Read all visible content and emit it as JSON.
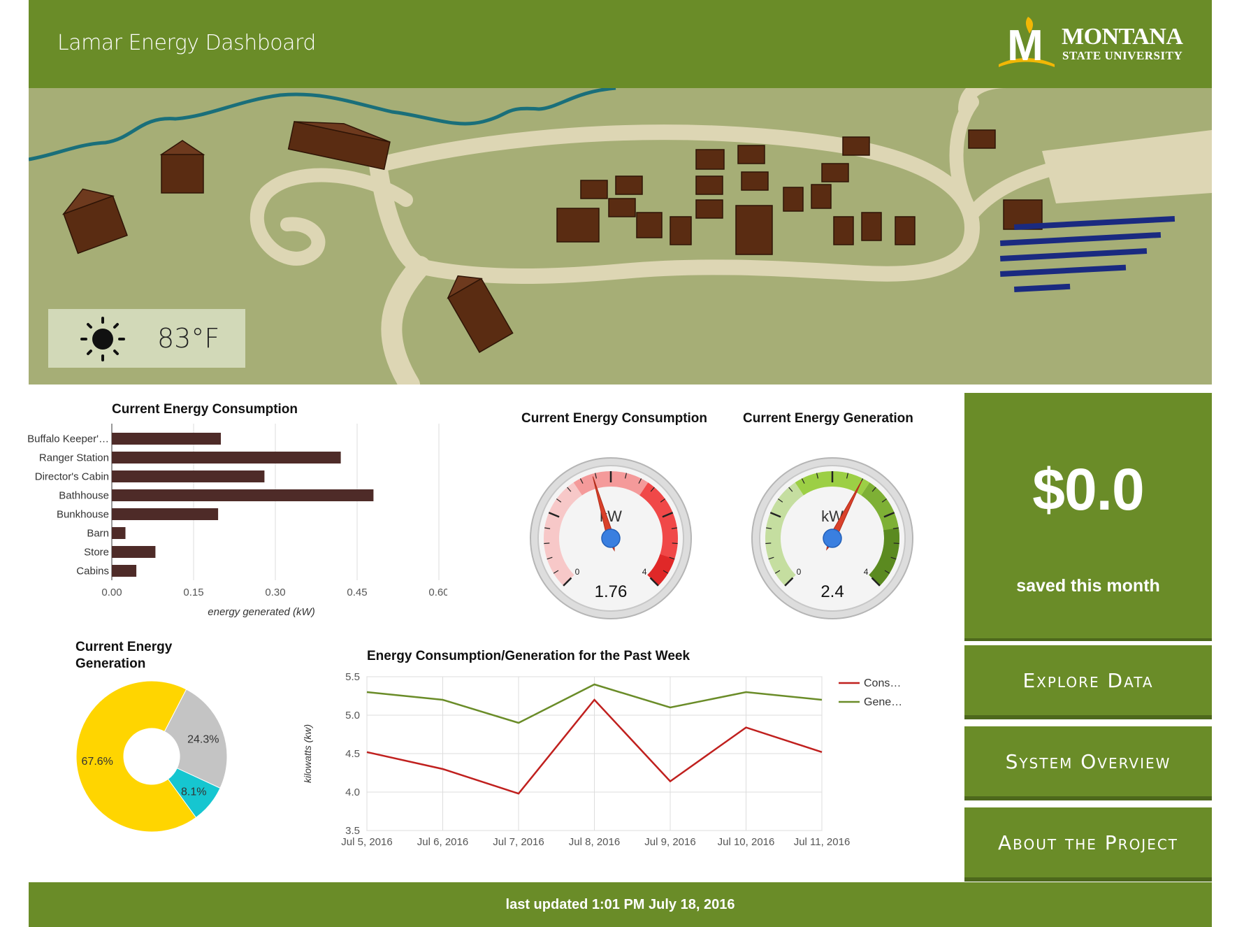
{
  "header": {
    "title": "Lamar Energy Dashboard"
  },
  "logo": {
    "name": "MONTANA",
    "sub": "STATE UNIVERSITY",
    "letter": "M"
  },
  "weather": {
    "icon": "sun-icon",
    "temperature": "83°F"
  },
  "bar_chart_title": "Current Energy Consumption",
  "gauge_consumption_title": "Current Energy Consumption",
  "gauge_generation_title": "Current Energy Generation",
  "donut_title_line1": "Current Energy",
  "donut_title_line2": "Generation",
  "line_chart_title": "Energy Consumption/Generation for the Past Week",
  "savings": {
    "value": "$0.0",
    "label": "saved this month"
  },
  "nav": {
    "explore": "Explore Data",
    "overview": "System Overview",
    "about": "About the Project"
  },
  "footer": {
    "updated": "last updated 1:01 PM July 18, 2016"
  },
  "colors": {
    "brand_green": "#6a8c28",
    "bar": "#4e2b28",
    "consumption": "#c0201e",
    "generation": "#6a8c28"
  },
  "chart_data": [
    {
      "type": "bar",
      "title": "Current Energy Consumption",
      "orientation": "horizontal",
      "categories": [
        "Buffalo Keeper'…",
        "Ranger Station",
        "Director's Cabin",
        "Bathhouse",
        "Bunkhouse",
        "Barn",
        "Store",
        "Cabins"
      ],
      "values": [
        0.2,
        0.42,
        0.28,
        0.48,
        0.195,
        0.025,
        0.08,
        0.045
      ],
      "xlabel": "energy generated (kW)",
      "xlim": [
        0,
        0.6
      ],
      "xticks": [
        "0.00",
        "0.15",
        "0.30",
        "0.45",
        "0.60"
      ],
      "grid": true
    },
    {
      "type": "gauge",
      "title": "Current Energy Consumption",
      "unit": "kW",
      "value": 1.76,
      "value_label": "1.76",
      "min": 0,
      "max": 4,
      "min_label": "0",
      "max_label": "4"
    },
    {
      "type": "gauge",
      "title": "Current Energy Generation",
      "unit": "kW",
      "value": 2.4,
      "value_label": "2.4",
      "min": 0,
      "max": 4,
      "min_label": "0",
      "max_label": "4"
    },
    {
      "type": "pie",
      "title": "Current Energy Generation",
      "donut": true,
      "slices": [
        {
          "value": 67.6,
          "label": "67.6%",
          "color": "#ffd500"
        },
        {
          "value": 24.3,
          "label": "24.3%",
          "color": "#c4c4c4"
        },
        {
          "value": 8.1,
          "label": "8.1%",
          "color": "#16c6d0"
        }
      ]
    },
    {
      "type": "line",
      "title": "Energy Consumption/Generation for the Past Week",
      "ylabel": "kilowatts (kw)",
      "ylim": [
        3.5,
        5.5
      ],
      "yticks": [
        "3.5",
        "4.0",
        "4.5",
        "5.0",
        "5.5"
      ],
      "categories": [
        "Jul 5, 2016",
        "Jul 6, 2016",
        "Jul 7, 2016",
        "Jul 8, 2016",
        "Jul 9, 2016",
        "Jul 10, 2016",
        "Jul 11, 2016"
      ],
      "series": [
        {
          "name": "Cons…",
          "color": "#c0201e",
          "values": [
            4.52,
            4.3,
            3.98,
            5.2,
            4.14,
            4.84,
            4.52
          ]
        },
        {
          "name": "Gene…",
          "color": "#6a8c28",
          "values": [
            5.3,
            5.2,
            4.9,
            5.4,
            5.1,
            5.3,
            5.2
          ]
        }
      ],
      "legend": "right",
      "grid": true
    }
  ]
}
